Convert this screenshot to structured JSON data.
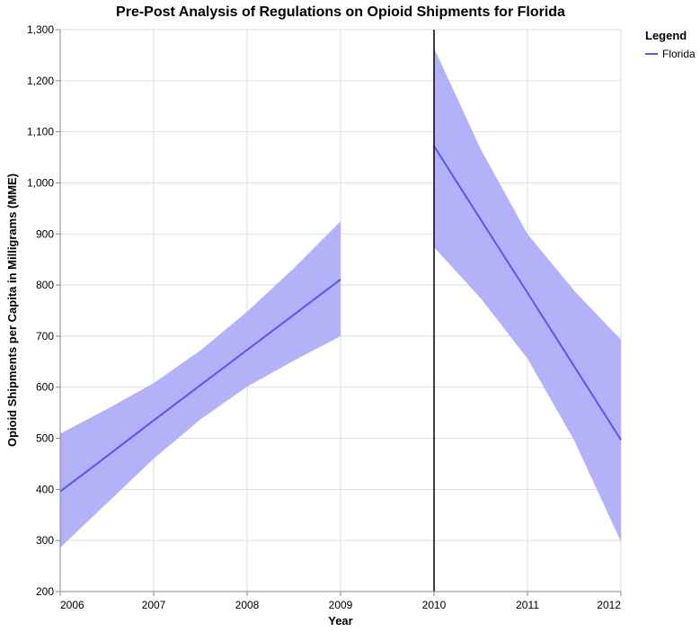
{
  "chart_data": {
    "type": "line",
    "title": "Pre-Post Analysis of Regulations on Opioid Shipments for Florida",
    "xlabel": "Year",
    "ylabel": "Opioid Shipments per Capita in Milligrams (MME)",
    "xlim": [
      2006,
      2012
    ],
    "ylim": [
      200,
      1300
    ],
    "x_ticks": [
      "2006",
      "2007",
      "2008",
      "2009",
      "2010",
      "2011",
      "2012"
    ],
    "y_ticks": [
      "200",
      "300",
      "400",
      "500",
      "600",
      "700",
      "800",
      "900",
      "1,000",
      "1,100",
      "1,200",
      "1,300"
    ],
    "grid": true,
    "legend": {
      "title": "Legend",
      "position": "top-right",
      "items": [
        "Florida"
      ]
    },
    "policy_line_x": 2010,
    "colors": {
      "line": "#5a55f0",
      "band": "#b3b2f8",
      "policy": "#000000"
    },
    "series": [
      {
        "name": "Florida",
        "segment": "pre",
        "x": [
          2006,
          2006.5,
          2007,
          2007.5,
          2008,
          2008.5,
          2009
        ],
        "y": [
          396,
          465,
          535,
          604,
          673,
          742,
          811
        ],
        "upper": [
          509,
          557,
          608,
          672,
          748,
          833,
          925
        ],
        "lower": [
          286,
          373,
          460,
          537,
          601,
          652,
          700
        ]
      },
      {
        "name": "Florida",
        "segment": "post",
        "x": [
          2010,
          2010.5,
          2011,
          2011.5,
          2012
        ],
        "y": [
          1072,
          928,
          785,
          641,
          497
        ],
        "upper": [
          1264,
          1066,
          900,
          789,
          693
        ],
        "lower": [
          874,
          774,
          656,
          496,
          298
        ]
      }
    ]
  }
}
